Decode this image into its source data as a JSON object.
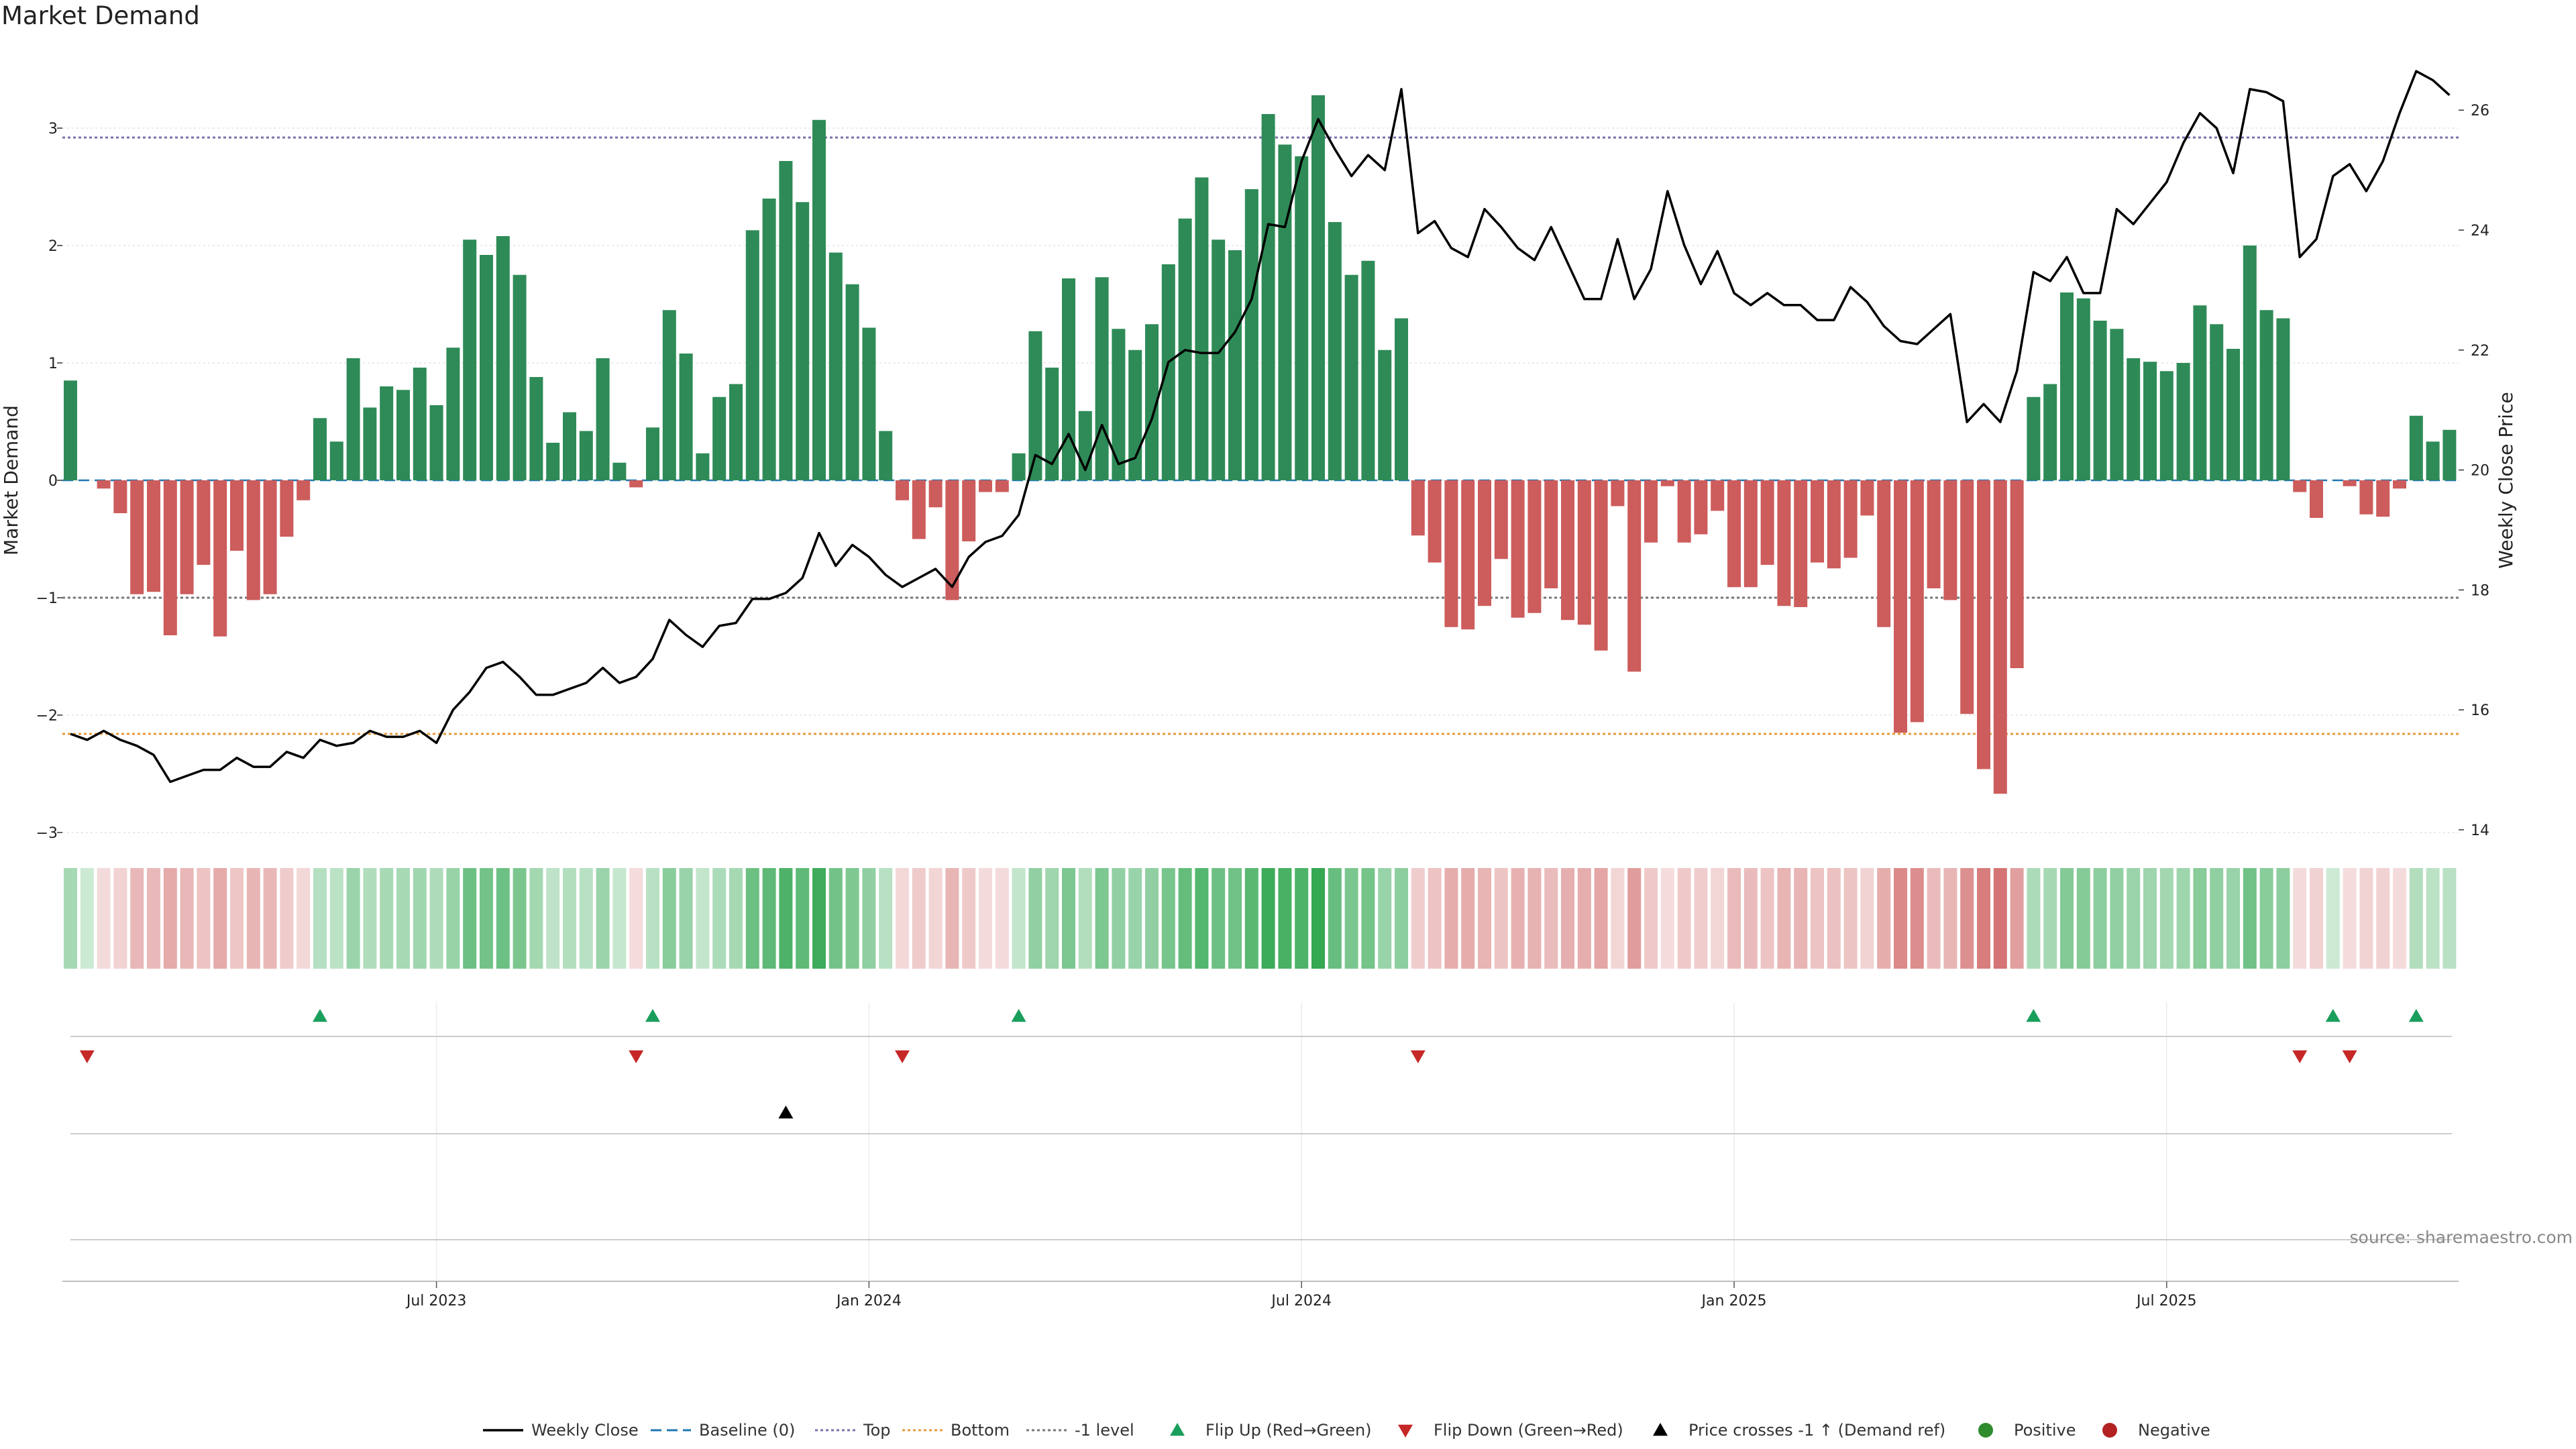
{
  "title": "Market Demand",
  "source": "source: sharemaestro.com",
  "colors": {
    "positive_bar": "#2e8b57",
    "negative_bar": "#cd5c5c",
    "price_line": "#000000",
    "top_line": "#7b6fa8",
    "bottom_line": "#e69b3a",
    "minus1_line": "#777777",
    "baseline": "#1f77b4",
    "flip_up": "#1a9e5c",
    "flip_down": "#c62828",
    "cross_marker": "#000000",
    "positive_dot": "#2e8b2e",
    "negative_dot": "#b22222"
  },
  "chart_data": {
    "type": "bar",
    "title": "Market Demand",
    "ylabel": "Market Demand",
    "y2label": "Weekly Close Price",
    "ylim": [
      -3.3,
      3.6
    ],
    "y2lim": [
      13.6,
      26.7
    ],
    "yticks": [
      3,
      2,
      1,
      0,
      -1,
      -2,
      -3
    ],
    "ytick_labels": [
      "3",
      "2",
      "1",
      "0",
      "−1",
      "−2",
      "−3"
    ],
    "y2ticks": [
      26,
      24,
      22,
      20,
      18,
      16,
      14
    ],
    "y2tick_labels": [
      "26",
      "24",
      "22",
      "20",
      "18",
      "16",
      "14"
    ],
    "xticks": [
      {
        "index": 22,
        "label": "Jul 2023"
      },
      {
        "index": 48,
        "label": "Jan 2024"
      },
      {
        "index": 74,
        "label": "Jul 2024"
      },
      {
        "index": 100,
        "label": "Jan 2025"
      },
      {
        "index": 126,
        "label": "Jul 2025"
      }
    ],
    "levels": {
      "top": 2.92,
      "bottom": -2.16,
      "minus1": -1.0,
      "baseline": 0
    },
    "demand": [
      0.85,
      0,
      -0.07,
      -0.28,
      -0.97,
      -0.95,
      -1.32,
      -0.97,
      -0.72,
      -1.33,
      -0.6,
      -1.02,
      -0.97,
      -0.48,
      -0.17,
      0.53,
      0.33,
      1.04,
      0.62,
      0.8,
      0.77,
      0.96,
      0.64,
      1.13,
      2.05,
      1.92,
      2.08,
      1.75,
      0.88,
      0.32,
      0.58,
      0.42,
      1.04,
      0.15,
      -0.06,
      0.45,
      1.45,
      1.08,
      0.23,
      0.71,
      0.82,
      2.13,
      2.4,
      2.72,
      2.37,
      3.07,
      1.94,
      1.67,
      1.3,
      0.42,
      -0.17,
      -0.5,
      -0.23,
      -1.02,
      -0.52,
      -0.1,
      -0.1,
      0.23,
      1.27,
      0.96,
      1.72,
      0.59,
      1.73,
      1.29,
      1.11,
      1.33,
      1.84,
      2.23,
      2.58,
      2.05,
      1.96,
      2.48,
      3.12,
      2.86,
      2.76,
      3.28,
      2.2,
      1.75,
      1.87,
      1.11,
      1.38,
      -0.47,
      -0.7,
      -1.25,
      -1.27,
      -1.07,
      -0.67,
      -1.17,
      -1.13,
      -0.92,
      -1.19,
      -1.23,
      -1.45,
      -0.22,
      -1.63,
      -0.53,
      -0.05,
      -0.53,
      -0.46,
      -0.26,
      -0.91,
      -0.91,
      -0.72,
      -1.07,
      -1.08,
      -0.7,
      -0.75,
      -0.66,
      -0.3,
      -1.25,
      -2.15,
      -2.06,
      -0.92,
      -1.02,
      -1.99,
      -2.46,
      -2.67,
      -1.6,
      0.71,
      0.82,
      1.6,
      1.55,
      1.36,
      1.29,
      1.04,
      1.01,
      0.93,
      1.0,
      1.49,
      1.33,
      1.12,
      2.0,
      1.45,
      1.38,
      -0.1,
      -0.32,
      0,
      -0.05,
      -0.29,
      -0.31,
      -0.07,
      0.55,
      0.33,
      0.43
    ],
    "price": [
      15.6,
      15.5,
      15.65,
      15.5,
      15.4,
      15.25,
      14.8,
      14.9,
      15.0,
      15.0,
      15.2,
      15.05,
      15.05,
      15.3,
      15.2,
      15.5,
      15.4,
      15.45,
      15.65,
      15.55,
      15.55,
      15.65,
      15.45,
      16.0,
      16.3,
      16.7,
      16.8,
      16.55,
      16.25,
      16.25,
      16.35,
      16.45,
      16.7,
      16.45,
      16.55,
      16.85,
      17.5,
      17.25,
      17.05,
      17.4,
      17.45,
      17.85,
      17.85,
      17.95,
      18.2,
      18.95,
      18.4,
      18.75,
      18.55,
      18.25,
      18.05,
      18.2,
      18.35,
      18.05,
      18.55,
      18.8,
      18.9,
      19.25,
      20.25,
      20.1,
      20.6,
      20.0,
      20.75,
      20.1,
      20.2,
      20.85,
      21.8,
      22.0,
      21.95,
      21.95,
      22.3,
      22.85,
      24.1,
      24.05,
      25.15,
      25.85,
      25.35,
      24.9,
      25.25,
      25.0,
      26.35,
      23.95,
      24.15,
      23.7,
      23.55,
      24.35,
      24.05,
      23.7,
      23.5,
      24.05,
      23.45,
      22.85,
      22.85,
      23.85,
      22.85,
      23.35,
      24.65,
      23.75,
      23.1,
      23.65,
      22.95,
      22.75,
      22.95,
      22.75,
      22.75,
      22.5,
      22.5,
      23.05,
      22.8,
      22.4,
      22.15,
      22.1,
      22.35,
      22.6,
      20.8,
      21.1,
      20.8,
      21.65,
      23.3,
      23.15,
      23.55,
      22.95,
      22.95,
      24.35,
      24.1,
      24.45,
      24.8,
      25.45,
      25.95,
      25.7,
      24.95,
      26.35,
      26.3,
      26.15,
      23.55,
      23.85,
      24.9,
      25.1,
      24.65,
      25.15,
      25.95,
      26.65,
      26.5,
      26.25
    ],
    "flip_up_indices": [
      15,
      35,
      57,
      118,
      136,
      141
    ],
    "flip_down_indices": [
      1,
      34,
      50,
      81,
      134,
      137
    ],
    "cross_indices": [
      43
    ],
    "legend": [
      {
        "label": "Weekly Close",
        "kind": "line-solid"
      },
      {
        "label": "Baseline (0)",
        "kind": "line-dash-blue"
      },
      {
        "label": "Top",
        "kind": "line-dot-purple"
      },
      {
        "label": "Bottom",
        "kind": "line-dot-orange"
      },
      {
        "label": "-1 level",
        "kind": "line-dot-gray"
      },
      {
        "label": "Flip Up (Red→Green)",
        "kind": "tri-up-green"
      },
      {
        "label": "Flip Down (Green→Red)",
        "kind": "tri-down-red"
      },
      {
        "label": "Price crosses -1 ↑ (Demand ref)",
        "kind": "tri-up-black"
      },
      {
        "label": "Positive",
        "kind": "dot-green"
      },
      {
        "label": "Negative",
        "kind": "dot-red"
      }
    ]
  }
}
